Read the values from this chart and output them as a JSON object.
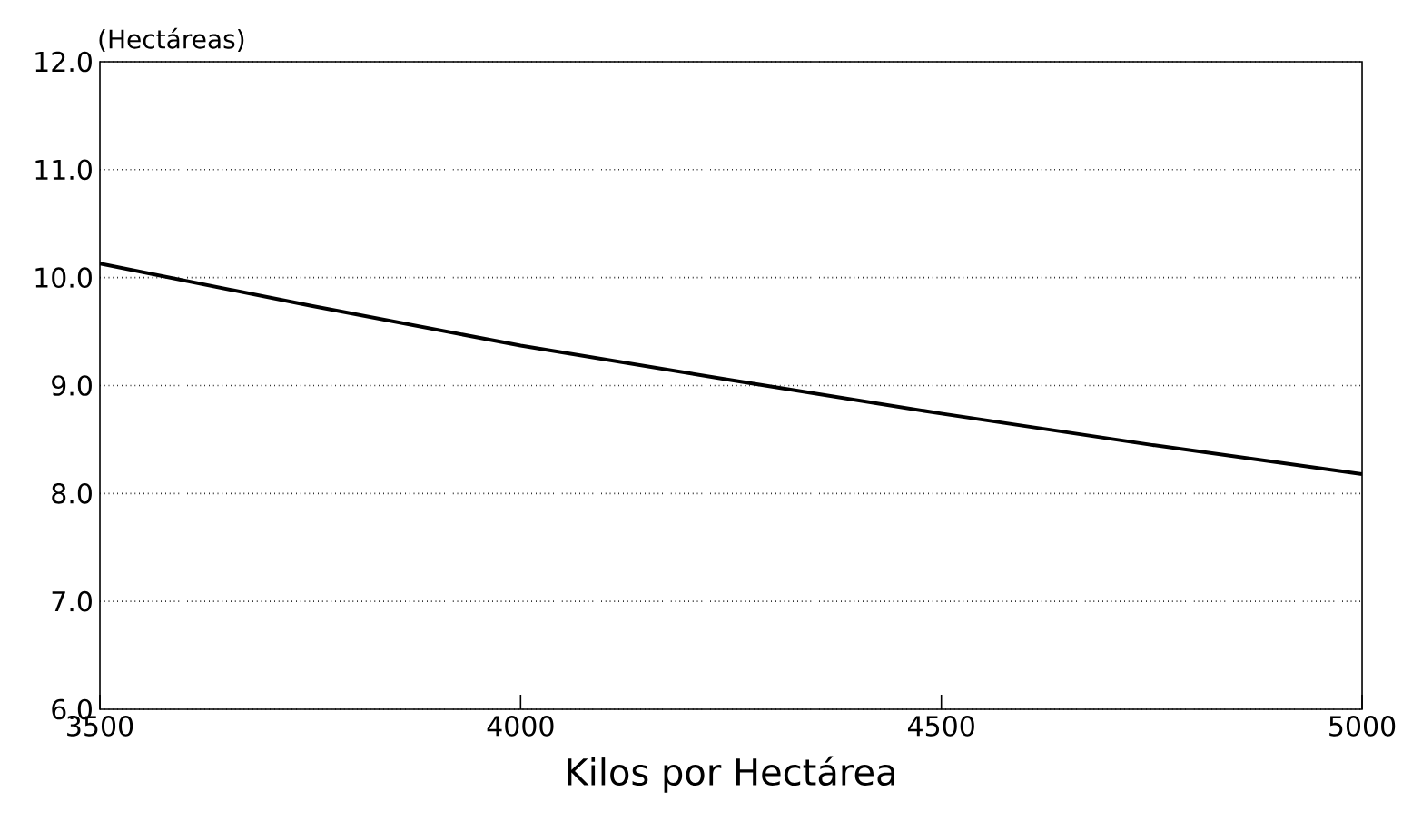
{
  "chart_data": {
    "type": "line",
    "xlabel": "Kilos por Hectárea",
    "ylabel": "(Hectáreas)",
    "x": [
      3500,
      3750,
      4000,
      4250,
      4500,
      4750,
      5000
    ],
    "series": [
      {
        "color": "#000000",
        "values": [
          10.13,
          9.74,
          9.37,
          9.05,
          8.74,
          8.45,
          8.18
        ]
      }
    ],
    "xlim": [
      3500,
      5000
    ],
    "ylim": [
      6,
      12
    ],
    "xticks": [
      3500,
      4000,
      4500,
      5000
    ],
    "yticks": [
      {
        "value": 6,
        "label": "6.0"
      },
      {
        "value": 7,
        "label": "7.0"
      },
      {
        "value": 8,
        "label": "8.0"
      },
      {
        "value": 9,
        "label": "9.0"
      },
      {
        "value": 10,
        "label": "10.0"
      },
      {
        "value": 11,
        "label": "11.0"
      },
      {
        "value": 12,
        "label": "12.0"
      }
    ],
    "grid": "y",
    "marker": "none",
    "line_style": "solid"
  }
}
